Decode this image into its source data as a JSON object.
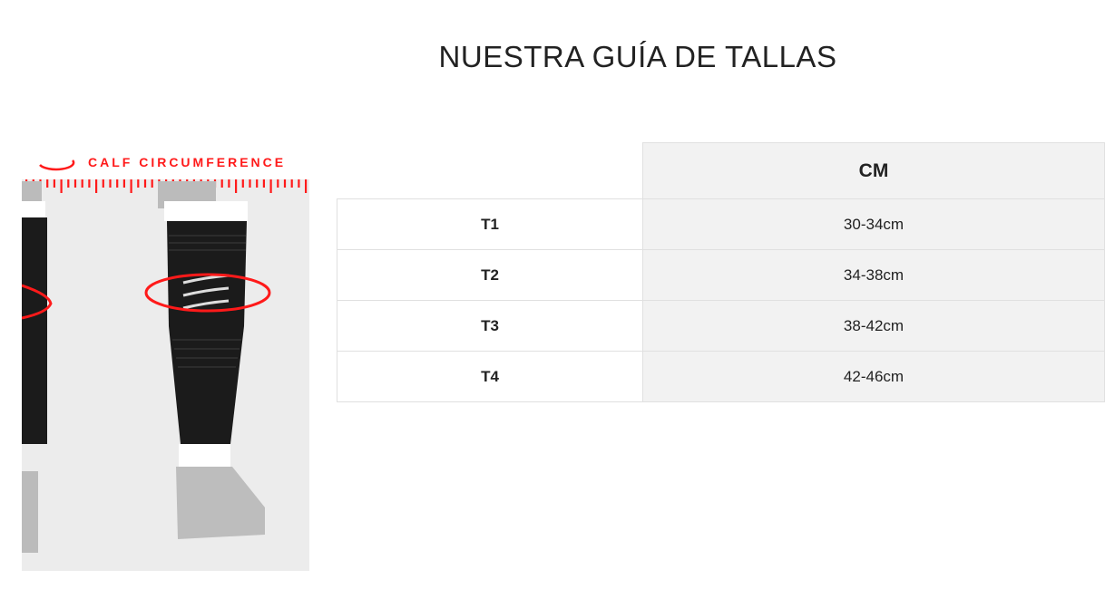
{
  "title": "NUESTRA GUÍA DE TALLAS",
  "figure": {
    "label": "CALF CIRCUMFERENCE",
    "accent": "#ff1a1a"
  },
  "table": {
    "header": "CM",
    "rows": [
      {
        "size": "T1",
        "cm": "30-34cm"
      },
      {
        "size": "T2",
        "cm": "34-38cm"
      },
      {
        "size": "T3",
        "cm": "38-42cm"
      },
      {
        "size": "T4",
        "cm": "42-46cm"
      }
    ]
  }
}
